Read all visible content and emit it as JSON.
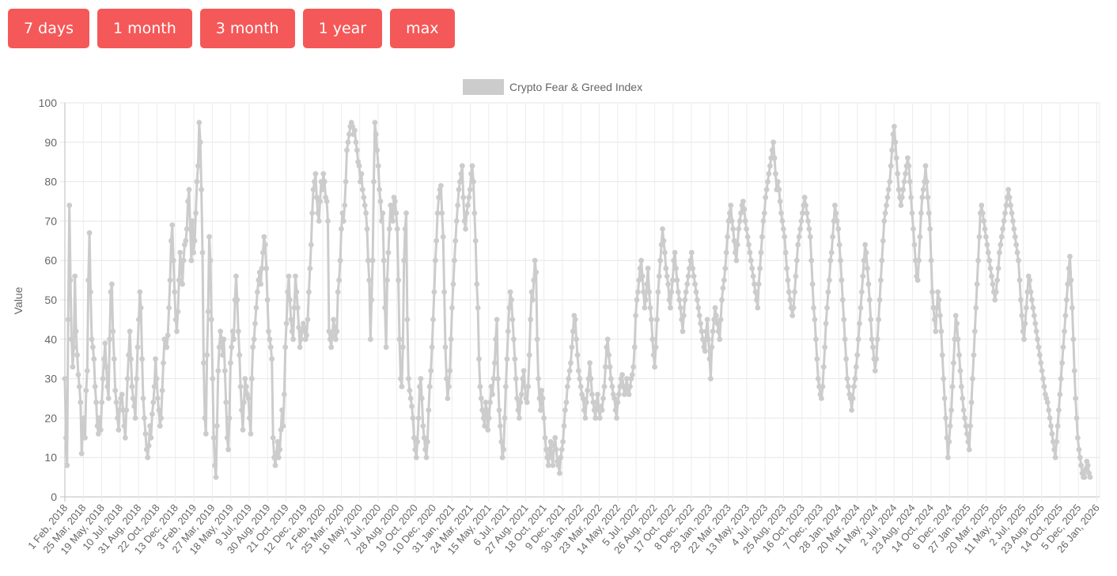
{
  "range_buttons": [
    {
      "label": "7 days"
    },
    {
      "label": "1 month"
    },
    {
      "label": "3 month"
    },
    {
      "label": "1 year"
    },
    {
      "label": "max"
    }
  ],
  "chart_data": {
    "type": "line",
    "title": "",
    "xlabel": "",
    "ylabel": "Value",
    "ylim": [
      0,
      100
    ],
    "yticks": [
      0,
      10,
      20,
      30,
      40,
      50,
      60,
      70,
      80,
      90,
      100
    ],
    "grid": true,
    "legend": "top-center",
    "color": "#cccccc",
    "x_tick_labels": [
      "1 Feb, 2018",
      "25 Mar, 2018",
      "19 May, 2018",
      "10 Jul, 2018",
      "31 Aug, 2018",
      "22 Oct, 2018",
      "13 Dec, 2018",
      "3 Feb, 2019",
      "27 Mar, 2019",
      "18 May, 2019",
      "9 Jul, 2019",
      "30 Aug, 2019",
      "21 Oct, 2019",
      "12 Dec, 2019",
      "2 Feb, 2020",
      "25 Mar, 2020",
      "16 May, 2020",
      "7 Jul, 2020",
      "28 Aug, 2020",
      "19 Oct, 2020",
      "10 Dec, 2020",
      "31 Jan, 2021",
      "24 Mar, 2021",
      "15 May, 2021",
      "6 Jul, 2021",
      "27 Aug, 2021",
      "18 Oct, 2021",
      "9 Dec, 2021",
      "30 Jan, 2022",
      "23 Mar, 2022",
      "14 May, 2022",
      "5 Jul, 2022",
      "26 Aug, 2022",
      "17 Oct, 2022",
      "8 Dec, 2022",
      "29 Jan, 2023",
      "22 Mar, 2023",
      "13 May, 2023",
      "4 Jul, 2023",
      "25 Aug, 2023",
      "16 Oct, 2023",
      "7 Dec, 2023",
      "28 Jan, 2024",
      "20 Mar, 2024",
      "11 May, 2024",
      "2 Jul, 2024",
      "23 Aug, 2024",
      "14 Oct, 2024",
      "6 Dec, 2024",
      "27 Jan, 2025",
      "20 Mar, 2025",
      "11 May, 2025",
      "2 Jul, 2025",
      "23 Aug, 2025",
      "14 Oct, 2025",
      "5 Dec, 2025",
      "26 Jan, 2026"
    ],
    "series": [
      {
        "name": "Crypto Fear & Greed Index",
        "x_start": "1 Feb, 2018",
        "x_step_days": 7,
        "values": [
          30,
          15,
          8,
          45,
          74,
          55,
          40,
          33,
          38,
          56,
          42,
          36,
          31,
          28,
          24,
          11,
          18,
          20,
          15,
          27,
          32,
          55,
          67,
          52,
          40,
          38,
          35,
          28,
          24,
          18,
          16,
          20,
          17,
          24,
          30,
          35,
          39,
          33,
          28,
          25,
          40,
          52,
          54,
          42,
          35,
          27,
          24,
          20,
          17,
          22,
          25,
          26,
          22,
          18,
          15,
          22,
          30,
          36,
          42,
          35,
          28,
          25,
          23,
          20,
          30,
          38,
          45,
          52,
          48,
          35,
          25,
          20,
          16,
          12,
          10,
          13,
          18,
          15,
          21,
          24,
          28,
          35,
          30,
          25,
          22,
          18,
          20,
          27,
          34,
          40,
          38,
          38,
          41,
          48,
          55,
          65,
          69,
          60,
          52,
          45,
          42,
          47,
          55,
          62,
          58,
          54,
          60,
          64,
          65,
          68,
          75,
          78,
          68,
          60,
          70,
          62,
          65,
          72,
          80,
          84,
          95,
          90,
          78,
          62,
          34,
          20,
          16,
          36,
          47,
          66,
          60,
          45,
          30,
          15,
          8,
          5,
          18,
          32,
          38,
          42,
          40,
          36,
          40,
          32,
          24,
          15,
          12,
          20,
          34,
          38,
          42,
          40,
          50,
          56,
          50,
          42,
          36,
          28,
          22,
          17,
          24,
          30,
          28,
          26,
          25,
          20,
          16,
          30,
          38,
          40,
          44,
          48,
          52,
          55,
          57,
          54,
          58,
          62,
          66,
          64,
          58,
          50,
          42,
          40,
          38,
          35,
          15,
          10,
          8,
          11,
          14,
          10,
          12,
          17,
          22,
          18,
          26,
          38,
          44,
          52,
          56,
          50,
          45,
          42,
          40,
          48,
          56,
          52,
          48,
          43,
          38,
          40,
          42,
          44,
          43,
          40,
          41,
          45,
          52,
          58,
          64,
          72,
          78,
          80,
          82,
          76,
          72,
          70,
          75,
          80,
          78,
          82,
          80,
          76,
          75,
          70,
          42,
          40,
          38,
          41,
          45,
          43,
          40,
          42,
          52,
          55,
          60,
          68,
          72,
          70,
          74,
          80,
          88,
          90,
          92,
          94,
          95,
          94,
          92,
          93,
          90,
          88,
          85,
          84,
          80,
          82,
          78,
          76,
          74,
          72,
          68,
          60,
          55,
          40,
          50,
          60,
          80,
          95,
          92,
          88,
          84,
          78,
          75,
          70,
          72,
          60,
          48,
          38,
          55,
          62,
          68,
          74,
          72,
          70,
          76,
          75,
          72,
          68,
          55,
          40,
          30,
          28,
          38,
          60,
          68,
          72,
          45,
          30,
          27,
          25,
          23,
          20,
          15,
          12,
          10,
          14,
          20,
          28,
          30,
          25,
          18,
          15,
          12,
          10,
          14,
          22,
          28,
          32,
          38,
          45,
          52,
          60,
          65,
          72,
          76,
          78,
          79,
          72,
          66,
          52,
          38,
          30,
          25,
          28,
          32,
          40,
          48,
          54,
          60,
          65,
          70,
          74,
          78,
          80,
          82,
          84,
          76,
          70,
          68,
          72,
          74,
          76,
          78,
          82,
          84,
          80,
          72,
          65,
          54,
          48,
          35,
          28,
          25,
          22,
          20,
          18,
          24,
          22,
          17,
          20,
          24,
          28,
          26,
          30,
          34,
          40,
          45,
          30,
          22,
          18,
          14,
          10,
          12,
          20,
          28,
          35,
          42,
          48,
          52,
          50,
          45,
          40,
          35,
          30,
          25,
          22,
          20,
          24,
          26,
          30,
          32,
          28,
          25,
          24,
          28,
          36,
          45,
          52,
          50,
          55,
          60,
          57,
          40,
          30,
          25,
          22,
          27,
          25,
          20,
          15,
          12,
          10,
          8,
          12,
          14,
          10,
          8,
          13,
          15,
          12,
          9,
          8,
          6,
          10,
          12,
          14,
          18,
          22,
          24,
          28,
          30,
          32,
          34,
          38,
          42,
          46,
          45,
          40,
          36,
          32,
          30,
          28,
          26,
          25,
          22,
          20,
          24,
          27,
          30,
          34,
          30,
          26,
          24,
          22,
          20,
          24,
          26,
          22,
          20,
          23,
          22,
          25,
          28,
          33,
          38,
          40,
          36,
          33,
          30,
          28,
          26,
          25,
          22,
          20,
          24,
          26,
          28,
          30,
          31,
          28,
          26,
          28,
          30,
          27,
          26,
          28,
          30,
          31,
          33,
          38,
          46,
          50,
          52,
          55,
          58,
          60,
          56,
          52,
          48,
          50,
          54,
          58,
          52,
          48,
          45,
          40,
          36,
          33,
          38,
          45,
          52,
          56,
          60,
          64,
          68,
          65,
          62,
          58,
          56,
          54,
          50,
          48,
          52,
          55,
          60,
          62,
          58,
          55,
          52,
          50,
          48,
          45,
          42,
          46,
          50,
          52,
          54,
          56,
          58,
          60,
          62,
          58,
          56,
          54,
          52,
          50,
          48,
          46,
          44,
          42,
          40,
          38,
          37,
          42,
          45,
          40,
          35,
          30,
          38,
          42,
          45,
          48,
          46,
          44,
          42,
          40,
          45,
          50,
          53,
          55,
          58,
          62,
          66,
          70,
          72,
          74,
          70,
          68,
          65,
          62,
          60,
          64,
          68,
          70,
          72,
          74,
          75,
          73,
          70,
          68,
          66,
          64,
          62,
          60,
          58,
          56,
          54,
          52,
          50,
          48,
          54,
          58,
          62,
          66,
          70,
          72,
          76,
          78,
          80,
          82,
          84,
          86,
          88,
          90,
          86,
          82,
          78,
          80,
          78,
          75,
          72,
          70,
          68,
          66,
          62,
          58,
          55,
          52,
          50,
          48,
          46,
          48,
          52,
          56,
          60,
          64,
          66,
          68,
          70,
          72,
          74,
          76,
          74,
          72,
          70,
          68,
          66,
          60,
          54,
          48,
          45,
          40,
          35,
          30,
          28,
          26,
          25,
          28,
          33,
          38,
          44,
          48,
          52,
          55,
          60,
          62,
          66,
          70,
          74,
          72,
          70,
          68,
          64,
          60,
          55,
          50,
          45,
          40,
          35,
          30,
          28,
          26,
          25,
          22,
          25,
          28,
          30,
          33,
          36,
          40,
          44,
          48,
          52,
          56,
          60,
          64,
          62,
          58,
          54,
          50,
          45,
          40,
          38,
          35,
          32,
          35,
          40,
          45,
          50,
          55,
          60,
          65,
          70,
          72,
          74,
          76,
          78,
          80,
          84,
          88,
          92,
          94,
          90,
          86,
          82,
          78,
          76,
          74,
          76,
          78,
          80,
          82,
          84,
          86,
          84,
          80,
          76,
          72,
          68,
          64,
          60,
          56,
          55,
          60,
          66,
          72,
          76,
          78,
          80,
          84,
          80,
          76,
          72,
          68,
          60,
          52,
          48,
          45,
          42,
          48,
          52,
          50,
          46,
          42,
          36,
          30,
          25,
          20,
          15,
          10,
          14,
          18,
          22,
          28,
          34,
          40,
          46,
          44,
          40,
          36,
          32,
          28,
          25,
          22,
          20,
          18,
          16,
          14,
          12,
          18,
          24,
          30,
          36,
          42,
          48,
          54,
          60,
          66,
          72,
          74,
          72,
          70,
          68,
          66,
          64,
          62,
          60,
          58,
          56,
          54,
          52,
          50,
          52,
          55,
          58,
          62,
          64,
          66,
          68,
          70,
          72,
          74,
          76,
          78,
          76,
          74,
          72,
          70,
          68,
          66,
          64,
          62,
          60,
          55,
          50,
          46,
          42,
          40,
          44,
          48,
          52,
          56,
          55,
          52,
          50,
          48,
          46,
          44,
          42,
          40,
          38,
          36,
          34,
          32,
          30,
          28,
          26,
          25,
          24,
          22,
          20,
          18,
          16,
          14,
          12,
          10,
          14,
          18,
          22,
          26,
          30,
          34,
          38,
          42,
          46,
          50,
          54,
          58,
          61,
          55,
          48,
          40,
          32,
          25,
          20,
          15,
          12,
          10,
          8,
          6,
          5,
          5,
          7,
          9,
          8,
          6,
          5
        ]
      }
    ]
  }
}
